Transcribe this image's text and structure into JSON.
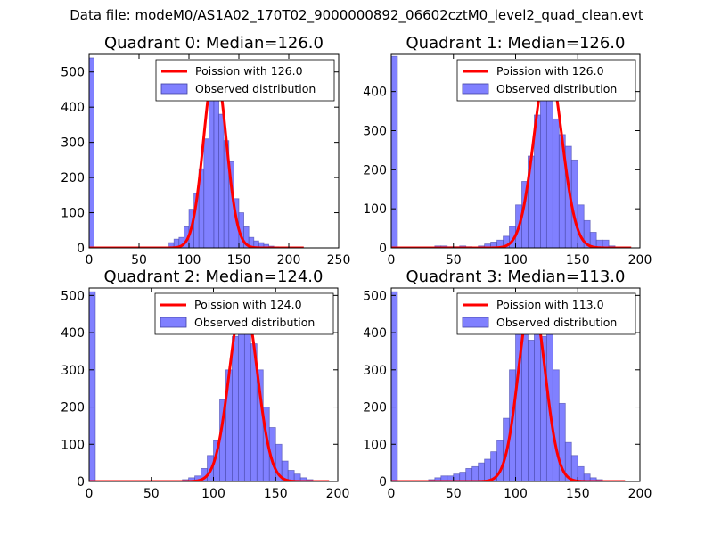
{
  "figure_title": "Data file: modeM0/AS1A02_170T02_9000000892_06602cztM0_level2_quad_clean.evt",
  "colors": {
    "bar_fill": "#8080ff",
    "bar_edge": "#4040a0",
    "curve": "#ff0000",
    "axis": "#000000",
    "background": "#ffffff"
  },
  "chart_data": [
    {
      "type": "bar",
      "title": "Quadrant 0: Median=126.0",
      "xlim": [
        0,
        250
      ],
      "ylim": [
        0,
        550
      ],
      "xticks": [
        0,
        50,
        100,
        150,
        200,
        250
      ],
      "yticks": [
        0,
        100,
        200,
        300,
        400,
        500
      ],
      "legend_position": "top-right",
      "legend": [
        "Poission with 126.0",
        "Observed distribution"
      ],
      "bin_width": 5,
      "bins": [
        [
          0,
          540
        ],
        [
          80,
          15
        ],
        [
          85,
          25
        ],
        [
          90,
          30
        ],
        [
          95,
          60
        ],
        [
          100,
          110
        ],
        [
          105,
          155
        ],
        [
          110,
          225
        ],
        [
          115,
          310
        ],
        [
          120,
          440
        ],
        [
          125,
          490
        ],
        [
          130,
          380
        ],
        [
          135,
          305
        ],
        [
          140,
          245
        ],
        [
          145,
          140
        ],
        [
          150,
          100
        ],
        [
          155,
          60
        ],
        [
          160,
          30
        ],
        [
          165,
          20
        ],
        [
          170,
          15
        ],
        [
          175,
          10
        ],
        [
          180,
          5
        ],
        [
          185,
          3
        ]
      ],
      "curve": {
        "label": "Poission with 126.0",
        "mu": 126.0,
        "peak": 515,
        "x_range": [
          0,
          215
        ]
      }
    },
    {
      "type": "bar",
      "title": "Quadrant 1: Median=126.0",
      "xlim": [
        0,
        200
      ],
      "ylim": [
        0,
        495
      ],
      "xticks": [
        0,
        50,
        100,
        150,
        200
      ],
      "yticks": [
        0,
        100,
        200,
        300,
        400
      ],
      "legend_position": "top-right",
      "legend": [
        "Poission with 126.0",
        "Observed distribution"
      ],
      "bin_width": 5,
      "bins": [
        [
          0,
          490
        ],
        [
          35,
          5
        ],
        [
          40,
          5
        ],
        [
          45,
          3
        ],
        [
          50,
          3
        ],
        [
          55,
          5
        ],
        [
          60,
          3
        ],
        [
          70,
          5
        ],
        [
          75,
          10
        ],
        [
          80,
          15
        ],
        [
          85,
          20
        ],
        [
          90,
          30
        ],
        [
          95,
          55
        ],
        [
          100,
          110
        ],
        [
          105,
          170
        ],
        [
          110,
          235
        ],
        [
          115,
          340
        ],
        [
          120,
          460
        ],
        [
          125,
          450
        ],
        [
          130,
          330
        ],
        [
          135,
          290
        ],
        [
          140,
          260
        ],
        [
          145,
          225
        ],
        [
          150,
          110
        ],
        [
          155,
          70
        ],
        [
          160,
          40
        ],
        [
          165,
          20
        ],
        [
          170,
          20
        ],
        [
          175,
          5
        ]
      ],
      "curve": {
        "label": "Poission with 126.0",
        "mu": 126.0,
        "peak": 470,
        "x_range": [
          0,
          193
        ]
      }
    },
    {
      "type": "bar",
      "title": "Quadrant 2: Median=124.0",
      "xlim": [
        0,
        200
      ],
      "ylim": [
        0,
        520
      ],
      "xticks": [
        0,
        50,
        100,
        150,
        200
      ],
      "yticks": [
        0,
        100,
        200,
        300,
        400,
        500
      ],
      "legend_position": "top-right",
      "legend": [
        "Poission with 124.0",
        "Observed distribution"
      ],
      "bin_width": 5,
      "bins": [
        [
          0,
          510
        ],
        [
          75,
          5
        ],
        [
          80,
          10
        ],
        [
          85,
          15
        ],
        [
          90,
          35
        ],
        [
          95,
          70
        ],
        [
          100,
          110
        ],
        [
          105,
          220
        ],
        [
          110,
          300
        ],
        [
          115,
          390
        ],
        [
          120,
          470
        ],
        [
          125,
          480
        ],
        [
          130,
          370
        ],
        [
          135,
          300
        ],
        [
          140,
          200
        ],
        [
          145,
          145
        ],
        [
          150,
          100
        ],
        [
          155,
          55
        ],
        [
          160,
          30
        ],
        [
          165,
          20
        ],
        [
          170,
          10
        ],
        [
          175,
          5
        ]
      ],
      "curve": {
        "label": "Poission with 124.0",
        "mu": 124.0,
        "peak": 490,
        "x_range": [
          0,
          193
        ]
      }
    },
    {
      "type": "bar",
      "title": "Quadrant 3: Median=113.0",
      "xlim": [
        0,
        200
      ],
      "ylim": [
        0,
        520
      ],
      "xticks": [
        0,
        50,
        100,
        150,
        200
      ],
      "yticks": [
        0,
        100,
        200,
        300,
        400,
        500
      ],
      "legend_position": "top-right",
      "legend": [
        "Poission with 113.0",
        "Observed distribution"
      ],
      "bin_width": 5,
      "bins": [
        [
          0,
          510
        ],
        [
          30,
          5
        ],
        [
          35,
          10
        ],
        [
          40,
          15
        ],
        [
          45,
          15
        ],
        [
          50,
          20
        ],
        [
          55,
          25
        ],
        [
          60,
          35
        ],
        [
          65,
          40
        ],
        [
          70,
          50
        ],
        [
          75,
          60
        ],
        [
          80,
          80
        ],
        [
          85,
          110
        ],
        [
          90,
          170
        ],
        [
          95,
          300
        ],
        [
          100,
          400
        ],
        [
          105,
          430
        ],
        [
          110,
          380
        ],
        [
          115,
          500
        ],
        [
          120,
          390
        ],
        [
          125,
          440
        ],
        [
          130,
          300
        ],
        [
          135,
          210
        ],
        [
          140,
          105
        ],
        [
          145,
          70
        ],
        [
          150,
          40
        ],
        [
          155,
          20
        ],
        [
          160,
          10
        ],
        [
          165,
          5
        ]
      ],
      "curve": {
        "label": "Poission with 113.0",
        "mu": 113.0,
        "peak": 495,
        "x_range": [
          0,
          188
        ]
      }
    }
  ]
}
